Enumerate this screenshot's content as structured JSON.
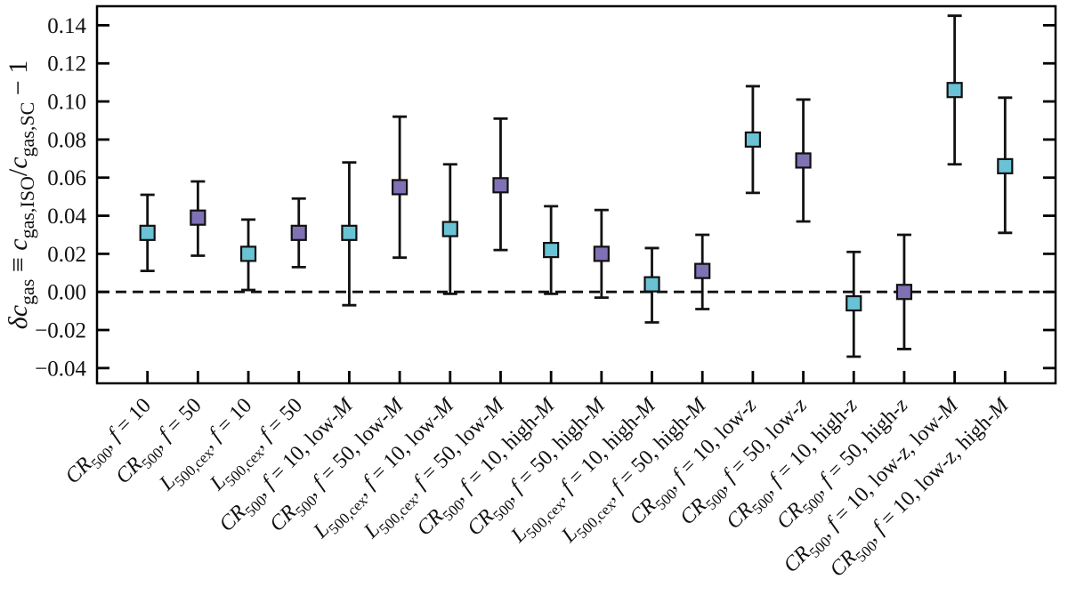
{
  "chart_data": {
    "type": "scatter",
    "title": "",
    "xlabel": "",
    "ylabel": "δc_gas ≡ c_gas,ISO/c_gas,SC − 1",
    "ylabel_rich": [
      [
        "δc",
        1,
        0
      ],
      [
        "gas",
        0,
        1
      ],
      [
        " ≡ ",
        0,
        0
      ],
      [
        "c",
        1,
        0
      ],
      [
        "gas,ISO",
        0,
        1
      ],
      [
        "/",
        0,
        0
      ],
      [
        "c",
        1,
        0
      ],
      [
        "gas,SC",
        0,
        1
      ],
      [
        " − 1",
        0,
        0
      ]
    ],
    "ylim": [
      -0.048,
      0.15
    ],
    "yticks": [
      -0.04,
      -0.02,
      0.0,
      0.02,
      0.04,
      0.06,
      0.08,
      0.1,
      0.12,
      0.14
    ],
    "ytick_labels": [
      "−0.04",
      "−0.02",
      "0.00",
      "0.02",
      "0.04",
      "0.06",
      "0.08",
      "0.10",
      "0.12",
      "0.14"
    ],
    "reference_line": {
      "y": 0.0,
      "style": "dashed"
    },
    "marker": "square",
    "grid": false,
    "legend": "none",
    "colors": {
      "cyan": "#69c3d4",
      "purple": "#8070b4",
      "line": "#111111",
      "edge": "#111111"
    },
    "categories": [
      "CR500, f = 10",
      "CR500, f = 50",
      "L500,cex, f = 10",
      "L500,cex, f = 50",
      "CR500, f = 10, low-M",
      "CR500, f = 50, low-M",
      "L500,cex, f = 10, low-M",
      "L500,cex, f = 50, low-M",
      "CR500, f = 10, high-M",
      "CR500, f = 50, high-M",
      "L500,cex, f = 10, high-M",
      "L500,cex, f = 50, high-M",
      "CR500, f = 10, low-z",
      "CR500, f = 50, low-z",
      "CR500, f = 10, high-z",
      "CR500, f = 50, high-z",
      "CR500, f = 10, low-z, low-M",
      "CR500, f = 10, low-z, high-M"
    ],
    "points": [
      {
        "label": "CR500, f = 10",
        "label_rich": [
          [
            "CR",
            1,
            0
          ],
          [
            "500",
            0,
            1
          ],
          [
            ", ",
            0,
            0
          ],
          [
            "f",
            1,
            0
          ],
          [
            " = 10",
            0,
            0
          ]
        ],
        "value": 0.031,
        "lo": 0.011,
        "hi": 0.051,
        "color": "cyan"
      },
      {
        "label": "CR500, f = 50",
        "label_rich": [
          [
            "CR",
            1,
            0
          ],
          [
            "500",
            0,
            1
          ],
          [
            ", ",
            0,
            0
          ],
          [
            "f",
            1,
            0
          ],
          [
            " = 50",
            0,
            0
          ]
        ],
        "value": 0.039,
        "lo": 0.019,
        "hi": 0.058,
        "color": "purple"
      },
      {
        "label": "L500,cex, f = 10",
        "label_rich": [
          [
            "L",
            1,
            0
          ],
          [
            "500,cex",
            0,
            1
          ],
          [
            ", ",
            0,
            0
          ],
          [
            "f",
            1,
            0
          ],
          [
            " = 10",
            0,
            0
          ]
        ],
        "value": 0.02,
        "lo": 0.001,
        "hi": 0.038,
        "color": "cyan"
      },
      {
        "label": "L500,cex, f = 50",
        "label_rich": [
          [
            "L",
            1,
            0
          ],
          [
            "500,cex",
            0,
            1
          ],
          [
            ", ",
            0,
            0
          ],
          [
            "f",
            1,
            0
          ],
          [
            " = 50",
            0,
            0
          ]
        ],
        "value": 0.031,
        "lo": 0.013,
        "hi": 0.049,
        "color": "purple"
      },
      {
        "label": "CR500, f = 10, low-M",
        "label_rich": [
          [
            "CR",
            1,
            0
          ],
          [
            "500",
            0,
            1
          ],
          [
            ", ",
            0,
            0
          ],
          [
            "f",
            1,
            0
          ],
          [
            " = 10",
            0,
            0
          ],
          [
            ", low-",
            0,
            0
          ],
          [
            "M",
            1,
            0
          ]
        ],
        "value": 0.031,
        "lo": -0.007,
        "hi": 0.068,
        "color": "cyan"
      },
      {
        "label": "CR500, f = 50, low-M",
        "label_rich": [
          [
            "CR",
            1,
            0
          ],
          [
            "500",
            0,
            1
          ],
          [
            ", ",
            0,
            0
          ],
          [
            "f",
            1,
            0
          ],
          [
            " = 50",
            0,
            0
          ],
          [
            ", low-",
            0,
            0
          ],
          [
            "M",
            1,
            0
          ]
        ],
        "value": 0.055,
        "lo": 0.018,
        "hi": 0.092,
        "color": "purple"
      },
      {
        "label": "L500,cex, f = 10, low-M",
        "label_rich": [
          [
            "L",
            1,
            0
          ],
          [
            "500,cex",
            0,
            1
          ],
          [
            ", ",
            0,
            0
          ],
          [
            "f",
            1,
            0
          ],
          [
            " = 10",
            0,
            0
          ],
          [
            ", low-",
            0,
            0
          ],
          [
            "M",
            1,
            0
          ]
        ],
        "value": 0.033,
        "lo": -0.001,
        "hi": 0.067,
        "color": "cyan"
      },
      {
        "label": "L500,cex, f = 50, low-M",
        "label_rich": [
          [
            "L",
            1,
            0
          ],
          [
            "500,cex",
            0,
            1
          ],
          [
            ", ",
            0,
            0
          ],
          [
            "f",
            1,
            0
          ],
          [
            " = 50",
            0,
            0
          ],
          [
            ", low-",
            0,
            0
          ],
          [
            "M",
            1,
            0
          ]
        ],
        "value": 0.056,
        "lo": 0.022,
        "hi": 0.091,
        "color": "purple"
      },
      {
        "label": "CR500, f = 10, high-M",
        "label_rich": [
          [
            "CR",
            1,
            0
          ],
          [
            "500",
            0,
            1
          ],
          [
            ", ",
            0,
            0
          ],
          [
            "f",
            1,
            0
          ],
          [
            " = 10",
            0,
            0
          ],
          [
            ", high-",
            0,
            0
          ],
          [
            "M",
            1,
            0
          ]
        ],
        "value": 0.022,
        "lo": -0.001,
        "hi": 0.045,
        "color": "cyan"
      },
      {
        "label": "CR500, f = 50, high-M",
        "label_rich": [
          [
            "CR",
            1,
            0
          ],
          [
            "500",
            0,
            1
          ],
          [
            ", ",
            0,
            0
          ],
          [
            "f",
            1,
            0
          ],
          [
            " = 50",
            0,
            0
          ],
          [
            ", high-",
            0,
            0
          ],
          [
            "M",
            1,
            0
          ]
        ],
        "value": 0.02,
        "lo": -0.003,
        "hi": 0.043,
        "color": "purple"
      },
      {
        "label": "L500,cex, f = 10, high-M",
        "label_rich": [
          [
            "L",
            1,
            0
          ],
          [
            "500,cex",
            0,
            1
          ],
          [
            ", ",
            0,
            0
          ],
          [
            "f",
            1,
            0
          ],
          [
            " = 10",
            0,
            0
          ],
          [
            ", high-",
            0,
            0
          ],
          [
            "M",
            1,
            0
          ]
        ],
        "value": 0.004,
        "lo": -0.016,
        "hi": 0.023,
        "color": "cyan"
      },
      {
        "label": "L500,cex, f = 50, high-M",
        "label_rich": [
          [
            "L",
            1,
            0
          ],
          [
            "500,cex",
            0,
            1
          ],
          [
            ", ",
            0,
            0
          ],
          [
            "f",
            1,
            0
          ],
          [
            " = 50",
            0,
            0
          ],
          [
            ", high-",
            0,
            0
          ],
          [
            "M",
            1,
            0
          ]
        ],
        "value": 0.011,
        "lo": -0.009,
        "hi": 0.03,
        "color": "purple"
      },
      {
        "label": "CR500, f = 10, low-z",
        "label_rich": [
          [
            "CR",
            1,
            0
          ],
          [
            "500",
            0,
            1
          ],
          [
            ", ",
            0,
            0
          ],
          [
            "f",
            1,
            0
          ],
          [
            " = 10",
            0,
            0
          ],
          [
            ", low-",
            0,
            0
          ],
          [
            "z",
            1,
            0
          ]
        ],
        "value": 0.08,
        "lo": 0.052,
        "hi": 0.108,
        "color": "cyan"
      },
      {
        "label": "CR500, f = 50, low-z",
        "label_rich": [
          [
            "CR",
            1,
            0
          ],
          [
            "500",
            0,
            1
          ],
          [
            ", ",
            0,
            0
          ],
          [
            "f",
            1,
            0
          ],
          [
            " = 50",
            0,
            0
          ],
          [
            ", low-",
            0,
            0
          ],
          [
            "z",
            1,
            0
          ]
        ],
        "value": 0.069,
        "lo": 0.037,
        "hi": 0.101,
        "color": "purple"
      },
      {
        "label": "CR500, f = 10, high-z",
        "label_rich": [
          [
            "CR",
            1,
            0
          ],
          [
            "500",
            0,
            1
          ],
          [
            ", ",
            0,
            0
          ],
          [
            "f",
            1,
            0
          ],
          [
            " = 10",
            0,
            0
          ],
          [
            ", high-",
            0,
            0
          ],
          [
            "z",
            1,
            0
          ]
        ],
        "value": -0.006,
        "lo": -0.034,
        "hi": 0.021,
        "color": "cyan"
      },
      {
        "label": "CR500, f = 50, high-z",
        "label_rich": [
          [
            "CR",
            1,
            0
          ],
          [
            "500",
            0,
            1
          ],
          [
            ", ",
            0,
            0
          ],
          [
            "f",
            1,
            0
          ],
          [
            " = 50",
            0,
            0
          ],
          [
            ", high-",
            0,
            0
          ],
          [
            "z",
            1,
            0
          ]
        ],
        "value": 0.0,
        "lo": -0.03,
        "hi": 0.03,
        "color": "purple"
      },
      {
        "label": "CR500, f = 10, low-z, low-M",
        "label_rich": [
          [
            "CR",
            1,
            0
          ],
          [
            "500",
            0,
            1
          ],
          [
            ", ",
            0,
            0
          ],
          [
            "f",
            1,
            0
          ],
          [
            " = 10",
            0,
            0
          ],
          [
            ", low-",
            0,
            0
          ],
          [
            "z",
            1,
            0
          ],
          [
            ", low-",
            0,
            0
          ],
          [
            "M",
            1,
            0
          ]
        ],
        "value": 0.106,
        "lo": 0.067,
        "hi": 0.145,
        "color": "cyan"
      },
      {
        "label": "CR500, f = 10, low-z, high-M",
        "label_rich": [
          [
            "CR",
            1,
            0
          ],
          [
            "500",
            0,
            1
          ],
          [
            ", ",
            0,
            0
          ],
          [
            "f",
            1,
            0
          ],
          [
            " = 10",
            0,
            0
          ],
          [
            ", low-",
            0,
            0
          ],
          [
            "z",
            1,
            0
          ],
          [
            ", high-",
            0,
            0
          ],
          [
            "M",
            1,
            0
          ]
        ],
        "value": 0.066,
        "lo": 0.031,
        "hi": 0.102,
        "color": "cyan"
      }
    ]
  }
}
